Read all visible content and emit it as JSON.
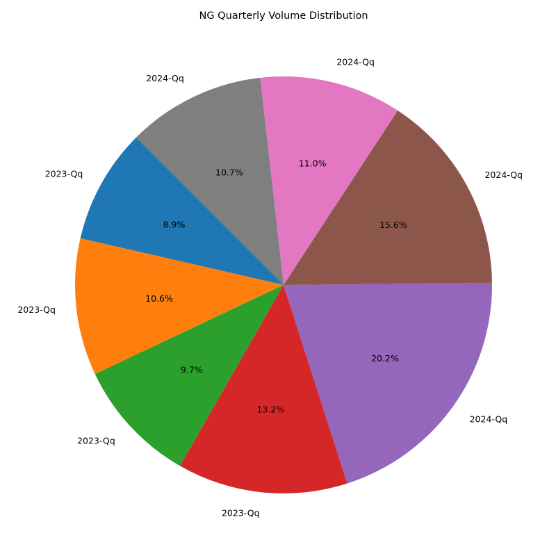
{
  "chart_data": {
    "type": "pie",
    "title": "NG Quarterly Volume Distribution",
    "start_angle_deg": 135,
    "direction": "counterclockwise",
    "slices": [
      {
        "label": "2023-Qq",
        "value": 8.9,
        "pct_label": "8.9%",
        "color": "#1f77b4"
      },
      {
        "label": "2023-Qq",
        "value": 10.6,
        "pct_label": "10.6%",
        "color": "#ff7f0e"
      },
      {
        "label": "2023-Qq",
        "value": 9.7,
        "pct_label": "9.7%",
        "color": "#2ca02c"
      },
      {
        "label": "2023-Qq",
        "value": 13.2,
        "pct_label": "13.2%",
        "color": "#d62728"
      },
      {
        "label": "2024-Qq",
        "value": 20.2,
        "pct_label": "20.2%",
        "color": "#9467bd"
      },
      {
        "label": "2024-Qq",
        "value": 15.6,
        "pct_label": "15.6%",
        "color": "#8c564b"
      },
      {
        "label": "2024-Qq",
        "value": 11.0,
        "pct_label": "11.0%",
        "color": "#e377c2"
      },
      {
        "label": "2024-Qq",
        "value": 10.7,
        "pct_label": "10.7%",
        "color": "#7f7f7f"
      }
    ]
  }
}
